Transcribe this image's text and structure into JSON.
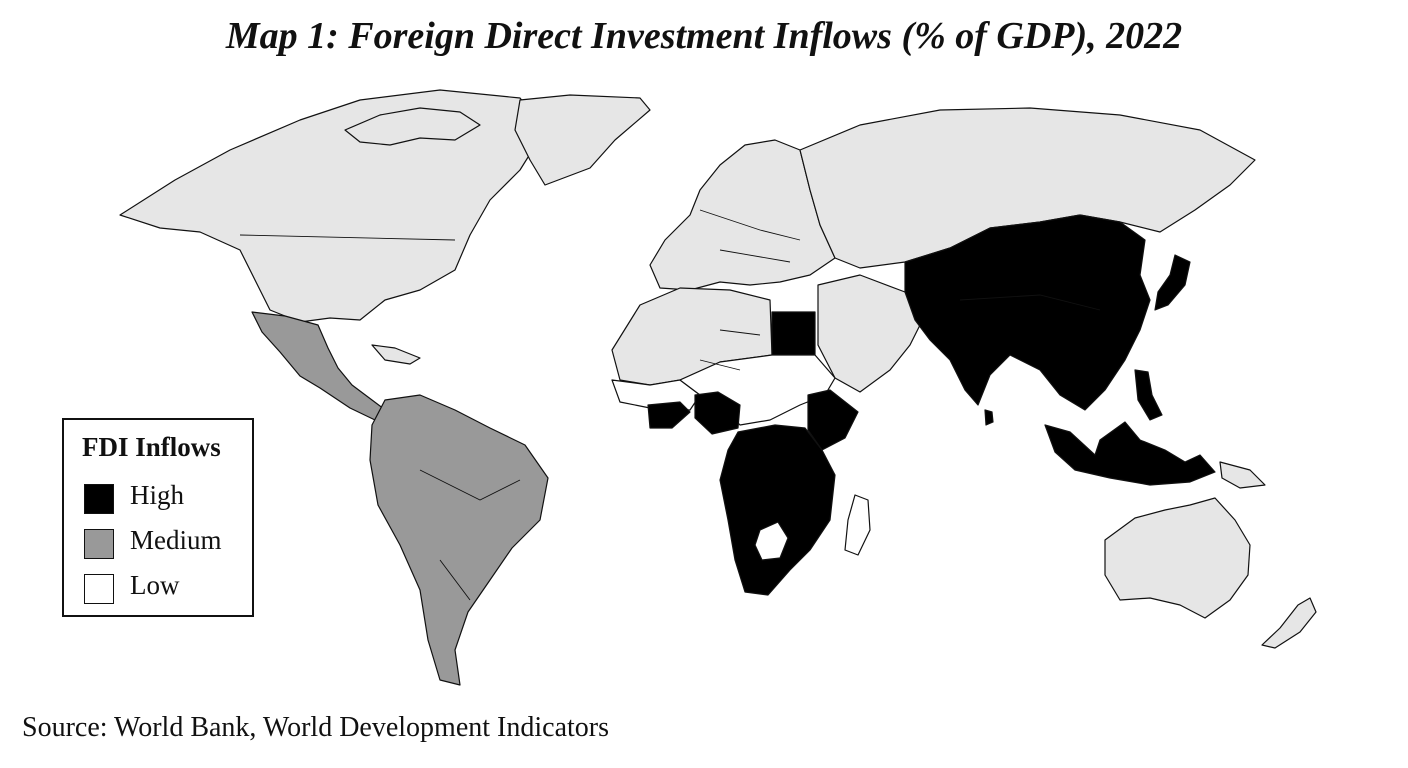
{
  "title": "Map 1: Foreign Direct Investment Inflows (% of GDP), 2022",
  "legend": {
    "title": "FDI Inflows",
    "items": [
      {
        "label": "High",
        "color": "#000000"
      },
      {
        "label": "Medium",
        "color": "#999999"
      },
      {
        "label": "Low",
        "color": "#ffffff"
      }
    ]
  },
  "colors": {
    "high": "#000000",
    "medium": "#999999",
    "low": "#ffffff",
    "no_data": "#e6e6e6",
    "outline": "#111111"
  },
  "source": "Source: World Bank, World Development Indicators"
}
